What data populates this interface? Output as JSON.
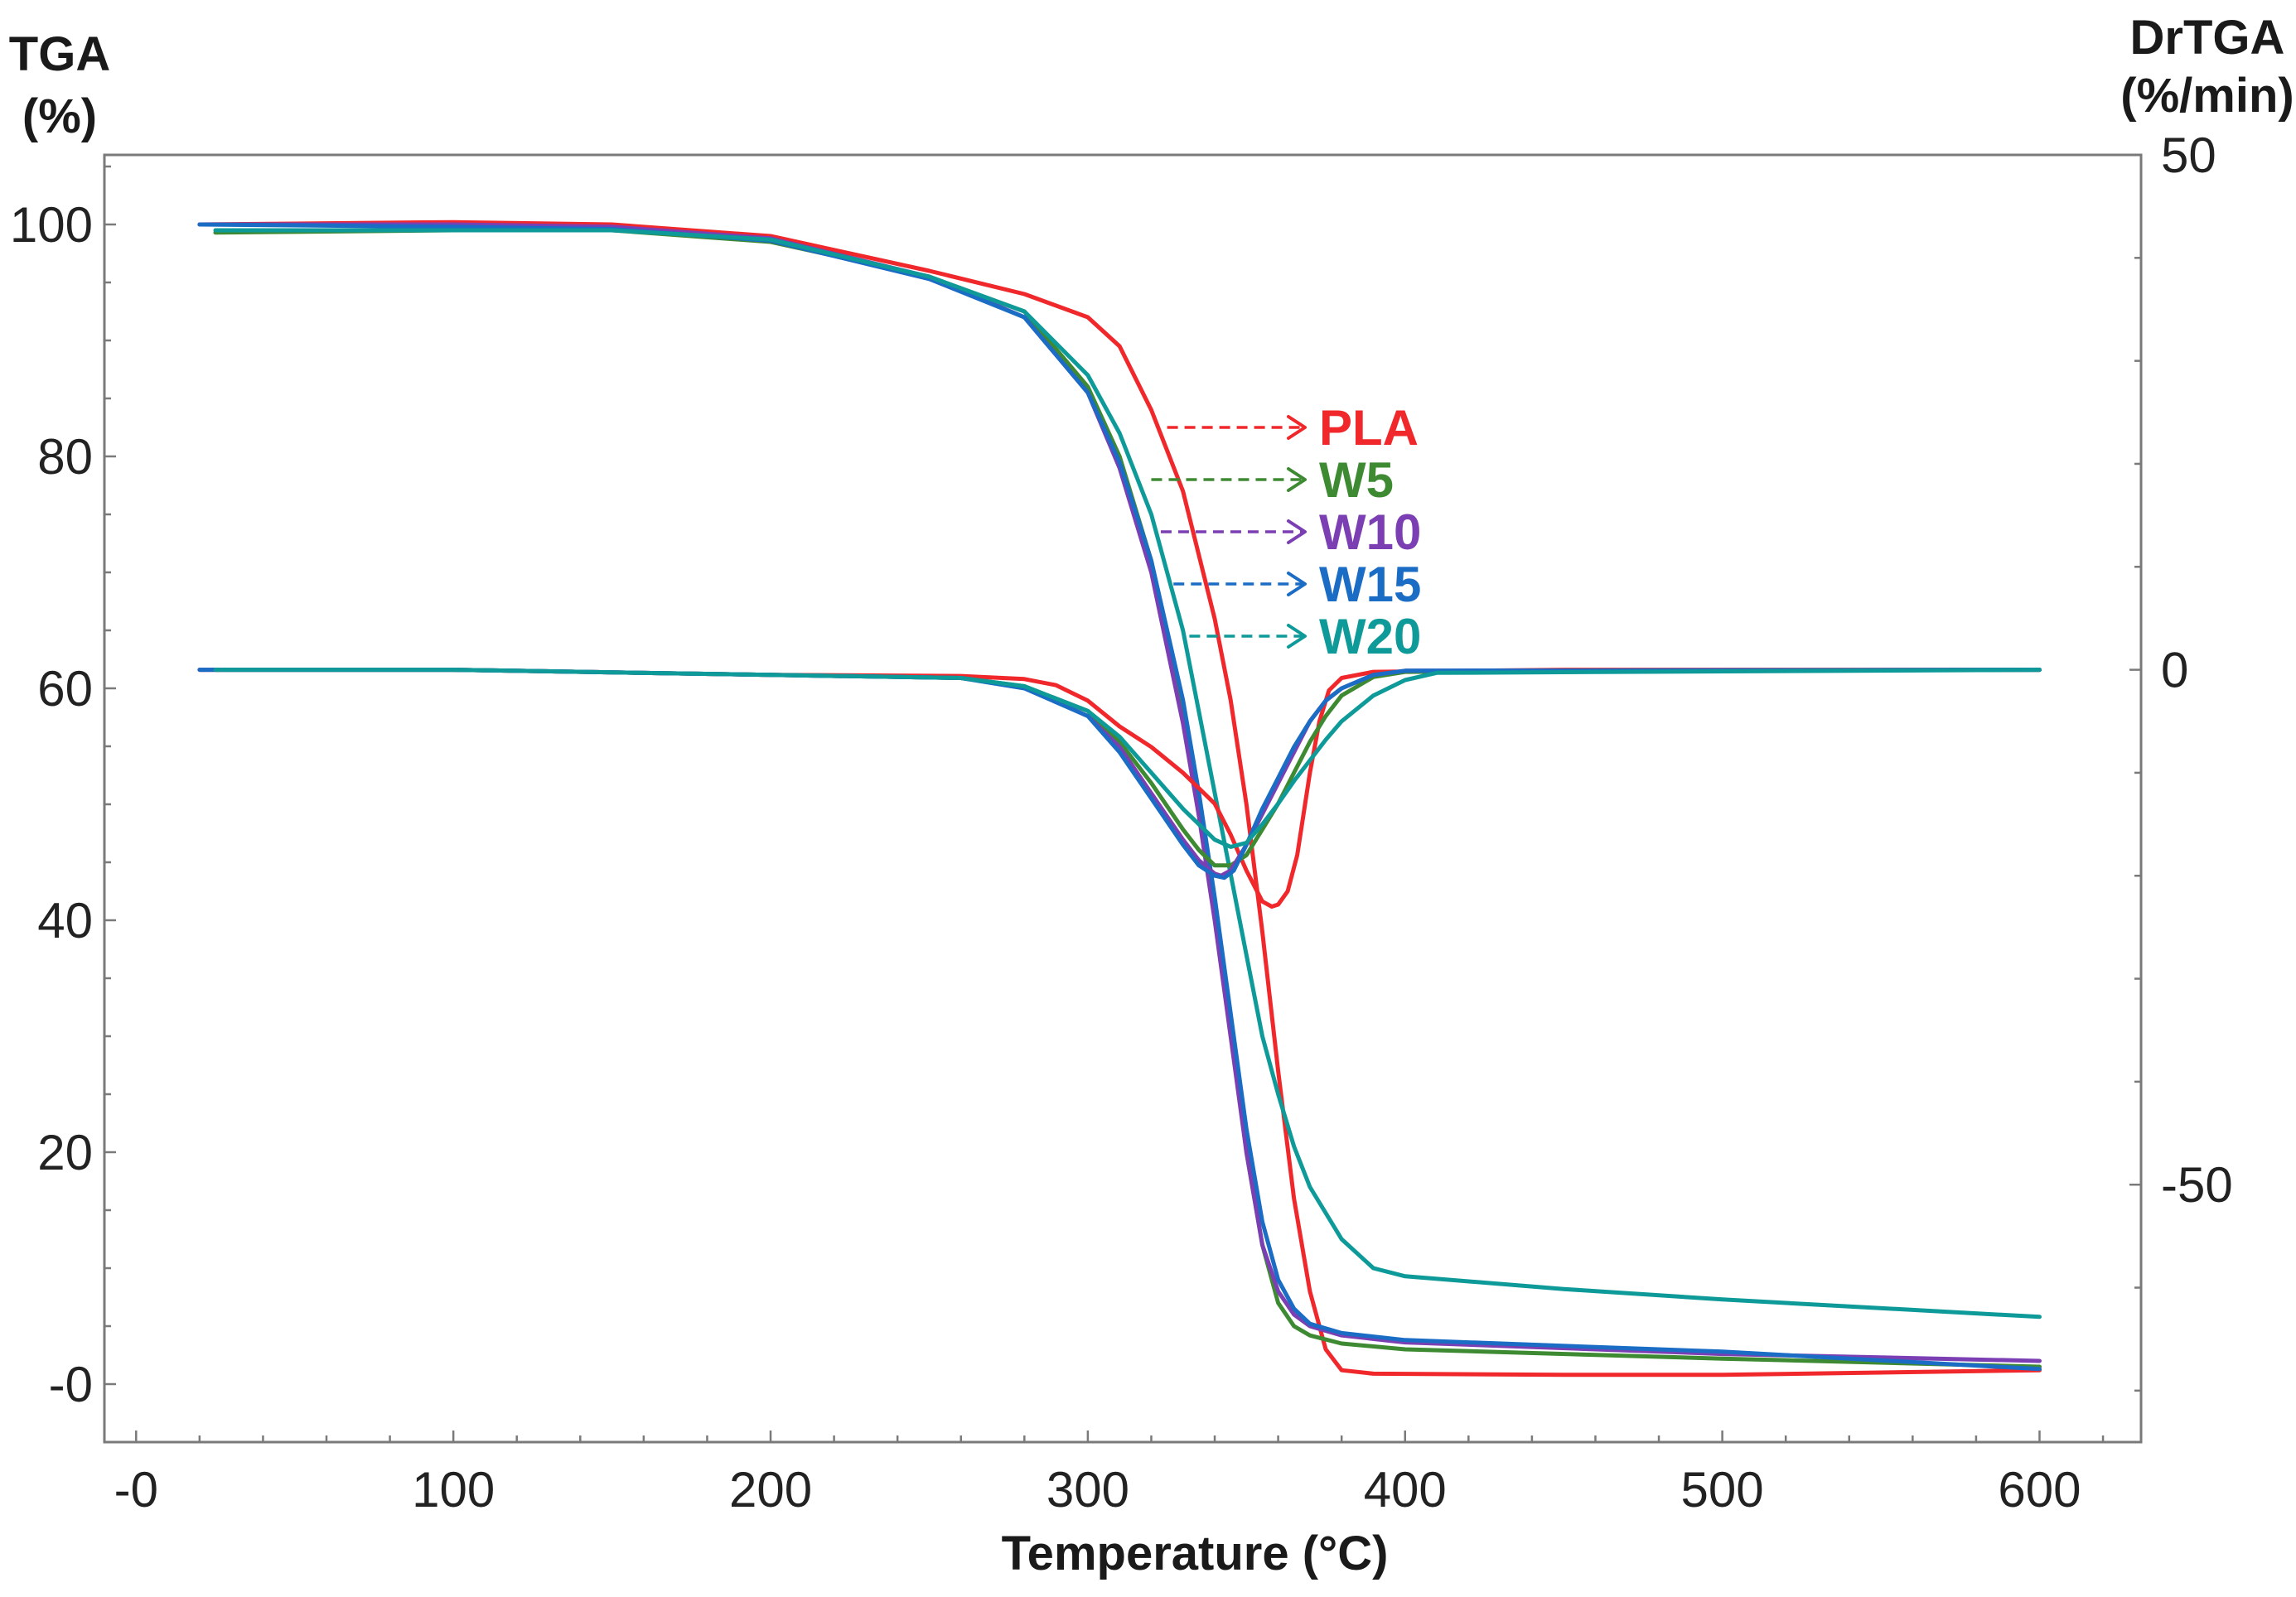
{
  "chart_data": {
    "type": "line",
    "xlabel": "Temperature (°C)",
    "ylabel_left": [
      "TGA",
      "(%)"
    ],
    "ylabel_right": [
      "DrTGA",
      "(%/min)"
    ],
    "xlim": [
      -10,
      632
    ],
    "ylim_left": [
      -5,
      106
    ],
    "ylim_right": [
      -75,
      50
    ],
    "x_ticks": [
      {
        "value": 0,
        "label": "-0"
      },
      {
        "value": 100,
        "label": "100"
      },
      {
        "value": 200,
        "label": "200"
      },
      {
        "value": 300,
        "label": "300"
      },
      {
        "value": 400,
        "label": "400"
      },
      {
        "value": 500,
        "label": "500"
      },
      {
        "value": 600,
        "label": "600"
      }
    ],
    "y_left_ticks": [
      {
        "value": 0,
        "label": "-0"
      },
      {
        "value": 20,
        "label": "20"
      },
      {
        "value": 40,
        "label": "40"
      },
      {
        "value": 60,
        "label": "60"
      },
      {
        "value": 80,
        "label": "80"
      },
      {
        "value": 100,
        "label": "100"
      }
    ],
    "y_right_ticks": [
      {
        "value": -50,
        "label": "-50"
      },
      {
        "value": 0,
        "label": "0"
      },
      {
        "value": 50,
        "label": "50"
      }
    ],
    "legend": [
      {
        "name": "PLA",
        "color": "#f0282b",
        "arrow_x": 325,
        "arrow_y": 82.5
      },
      {
        "name": "W5",
        "color": "#3e8a33",
        "arrow_x": 320,
        "arrow_y": 78
      },
      {
        "name": "W10",
        "color": "#7b3fb3",
        "arrow_x": 323,
        "arrow_y": 73.5
      },
      {
        "name": "W15",
        "color": "#1a6cc4",
        "arrow_x": 327,
        "arrow_y": 69
      },
      {
        "name": "W20",
        "color": "#0f9a9a",
        "arrow_x": 332,
        "arrow_y": 64.5
      }
    ],
    "series": [
      {
        "name": "PLA",
        "kind": "TGA",
        "axis": "left",
        "color": "#f0282b",
        "x": [
          20,
          100,
          150,
          200,
          250,
          280,
          300,
          310,
          320,
          330,
          340,
          345,
          350,
          355,
          360,
          365,
          370,
          375,
          380,
          390,
          450,
          500,
          600
        ],
        "y": [
          100,
          100.2,
          100,
          99,
          96,
          94,
          92,
          89.5,
          84,
          77,
          66,
          59,
          50,
          39,
          27,
          16,
          8,
          3,
          1.2,
          0.9,
          0.8,
          0.8,
          1.2
        ]
      },
      {
        "name": "W5",
        "kind": "TGA",
        "axis": "left",
        "color": "#3e8a33",
        "x": [
          25,
          100,
          150,
          200,
          250,
          280,
          300,
          310,
          320,
          330,
          335,
          340,
          345,
          350,
          355,
          360,
          365,
          370,
          380,
          400,
          500,
          600
        ],
        "y": [
          99.3,
          99.5,
          99.5,
          98.5,
          95.5,
          92.5,
          86,
          80,
          71,
          58,
          50,
          41,
          31,
          20,
          12,
          7,
          5,
          4.2,
          3.5,
          3,
          2.2,
          1.5
        ]
      },
      {
        "name": "W10",
        "kind": "TGA",
        "axis": "left",
        "color": "#7b3fb3",
        "x": [
          20,
          100,
          150,
          200,
          250,
          280,
          300,
          310,
          320,
          330,
          335,
          340,
          345,
          350,
          355,
          360,
          365,
          370,
          380,
          400,
          500,
          600
        ],
        "y": [
          100,
          100,
          99.8,
          98.8,
          95.5,
          92,
          85.5,
          79,
          70,
          57,
          49,
          40,
          30,
          20,
          12,
          8,
          6,
          5,
          4.2,
          3.6,
          2.6,
          2
        ]
      },
      {
        "name": "W15",
        "kind": "TGA",
        "axis": "left",
        "color": "#1a6cc4",
        "x": [
          20,
          100,
          150,
          200,
          250,
          280,
          300,
          310,
          320,
          330,
          335,
          340,
          345,
          350,
          355,
          360,
          365,
          370,
          380,
          400,
          500,
          600
        ],
        "y": [
          100,
          99.8,
          99.6,
          98.6,
          95.3,
          92,
          85.5,
          79.5,
          71,
          59,
          51,
          42,
          32,
          22,
          14,
          9,
          6.5,
          5.2,
          4.4,
          3.8,
          2.8,
          1.3
        ]
      },
      {
        "name": "W20",
        "kind": "TGA",
        "axis": "left",
        "color": "#0f9a9a",
        "x": [
          25,
          100,
          150,
          200,
          250,
          280,
          300,
          310,
          320,
          330,
          335,
          340,
          345,
          350,
          355,
          360,
          365,
          370,
          380,
          390,
          400,
          450,
          500,
          600
        ],
        "y": [
          99.5,
          99.5,
          99.5,
          98.7,
          95.5,
          92.5,
          87,
          82,
          75,
          65,
          58,
          51,
          44,
          37,
          30,
          25,
          20.5,
          17,
          12.5,
          10,
          9.3,
          8.2,
          7.3,
          5.8
        ]
      },
      {
        "name": "PLA",
        "kind": "DrTGA",
        "axis": "right",
        "color": "#f0282b",
        "x": [
          20,
          100,
          200,
          260,
          280,
          290,
          300,
          310,
          320,
          330,
          340,
          345,
          350,
          355,
          358,
          360,
          363,
          366,
          370,
          373,
          376,
          380,
          390,
          450,
          600
        ],
        "y": [
          0,
          0,
          -0.5,
          -0.6,
          -0.9,
          -1.5,
          -3,
          -5.5,
          -7.5,
          -10,
          -13,
          -16,
          -19.5,
          -22.5,
          -23,
          -22.8,
          -21.5,
          -18,
          -10,
          -5,
          -2,
          -0.8,
          -0.2,
          0,
          0
        ]
      },
      {
        "name": "W5",
        "kind": "DrTGA",
        "axis": "right",
        "color": "#3e8a33",
        "x": [
          25,
          100,
          200,
          260,
          280,
          300,
          310,
          320,
          330,
          335,
          340,
          345,
          350,
          355,
          360,
          365,
          370,
          375,
          380,
          390,
          400,
          600
        ],
        "y": [
          0,
          0,
          -0.5,
          -0.8,
          -1.6,
          -4,
          -7,
          -11,
          -15.5,
          -17.5,
          -19,
          -19,
          -18,
          -15.5,
          -13,
          -10,
          -7,
          -4.5,
          -2.5,
          -0.7,
          -0.2,
          0
        ]
      },
      {
        "name": "W10",
        "kind": "DrTGA",
        "axis": "right",
        "color": "#7b3fb3",
        "x": [
          20,
          100,
          200,
          260,
          280,
          300,
          310,
          320,
          330,
          335,
          340,
          342,
          345,
          350,
          355,
          360,
          365,
          370,
          375,
          380,
          390,
          400,
          600
        ],
        "y": [
          0,
          0,
          -0.5,
          -0.8,
          -1.7,
          -4.5,
          -7.5,
          -12,
          -16.5,
          -18.5,
          -19.8,
          -20,
          -19.5,
          -17,
          -14,
          -11,
          -8,
          -5,
          -3,
          -1.8,
          -0.5,
          -0.1,
          0
        ]
      },
      {
        "name": "W15",
        "kind": "DrTGA",
        "axis": "right",
        "color": "#1a6cc4",
        "x": [
          20,
          100,
          200,
          260,
          280,
          300,
          310,
          320,
          330,
          335,
          340,
          343,
          346,
          350,
          355,
          360,
          365,
          370,
          375,
          380,
          390,
          400,
          600
        ],
        "y": [
          0,
          0,
          -0.5,
          -0.8,
          -1.8,
          -4.5,
          -8,
          -12.5,
          -17,
          -19,
          -20,
          -20.2,
          -19.5,
          -17,
          -13.5,
          -10.5,
          -7.5,
          -5,
          -3,
          -1.8,
          -0.5,
          -0.1,
          0
        ]
      },
      {
        "name": "W20",
        "kind": "DrTGA",
        "axis": "right",
        "color": "#0f9a9a",
        "x": [
          25,
          100,
          200,
          260,
          280,
          300,
          310,
          320,
          330,
          340,
          345,
          350,
          355,
          360,
          365,
          370,
          375,
          380,
          390,
          400,
          410,
          600
        ],
        "y": [
          0,
          0,
          -0.5,
          -0.8,
          -1.6,
          -4,
          -6.5,
          -10,
          -13.5,
          -16.5,
          -17.2,
          -16.8,
          -15,
          -13,
          -10.8,
          -8.8,
          -6.8,
          -5,
          -2.5,
          -1,
          -0.3,
          0
        ]
      }
    ]
  }
}
